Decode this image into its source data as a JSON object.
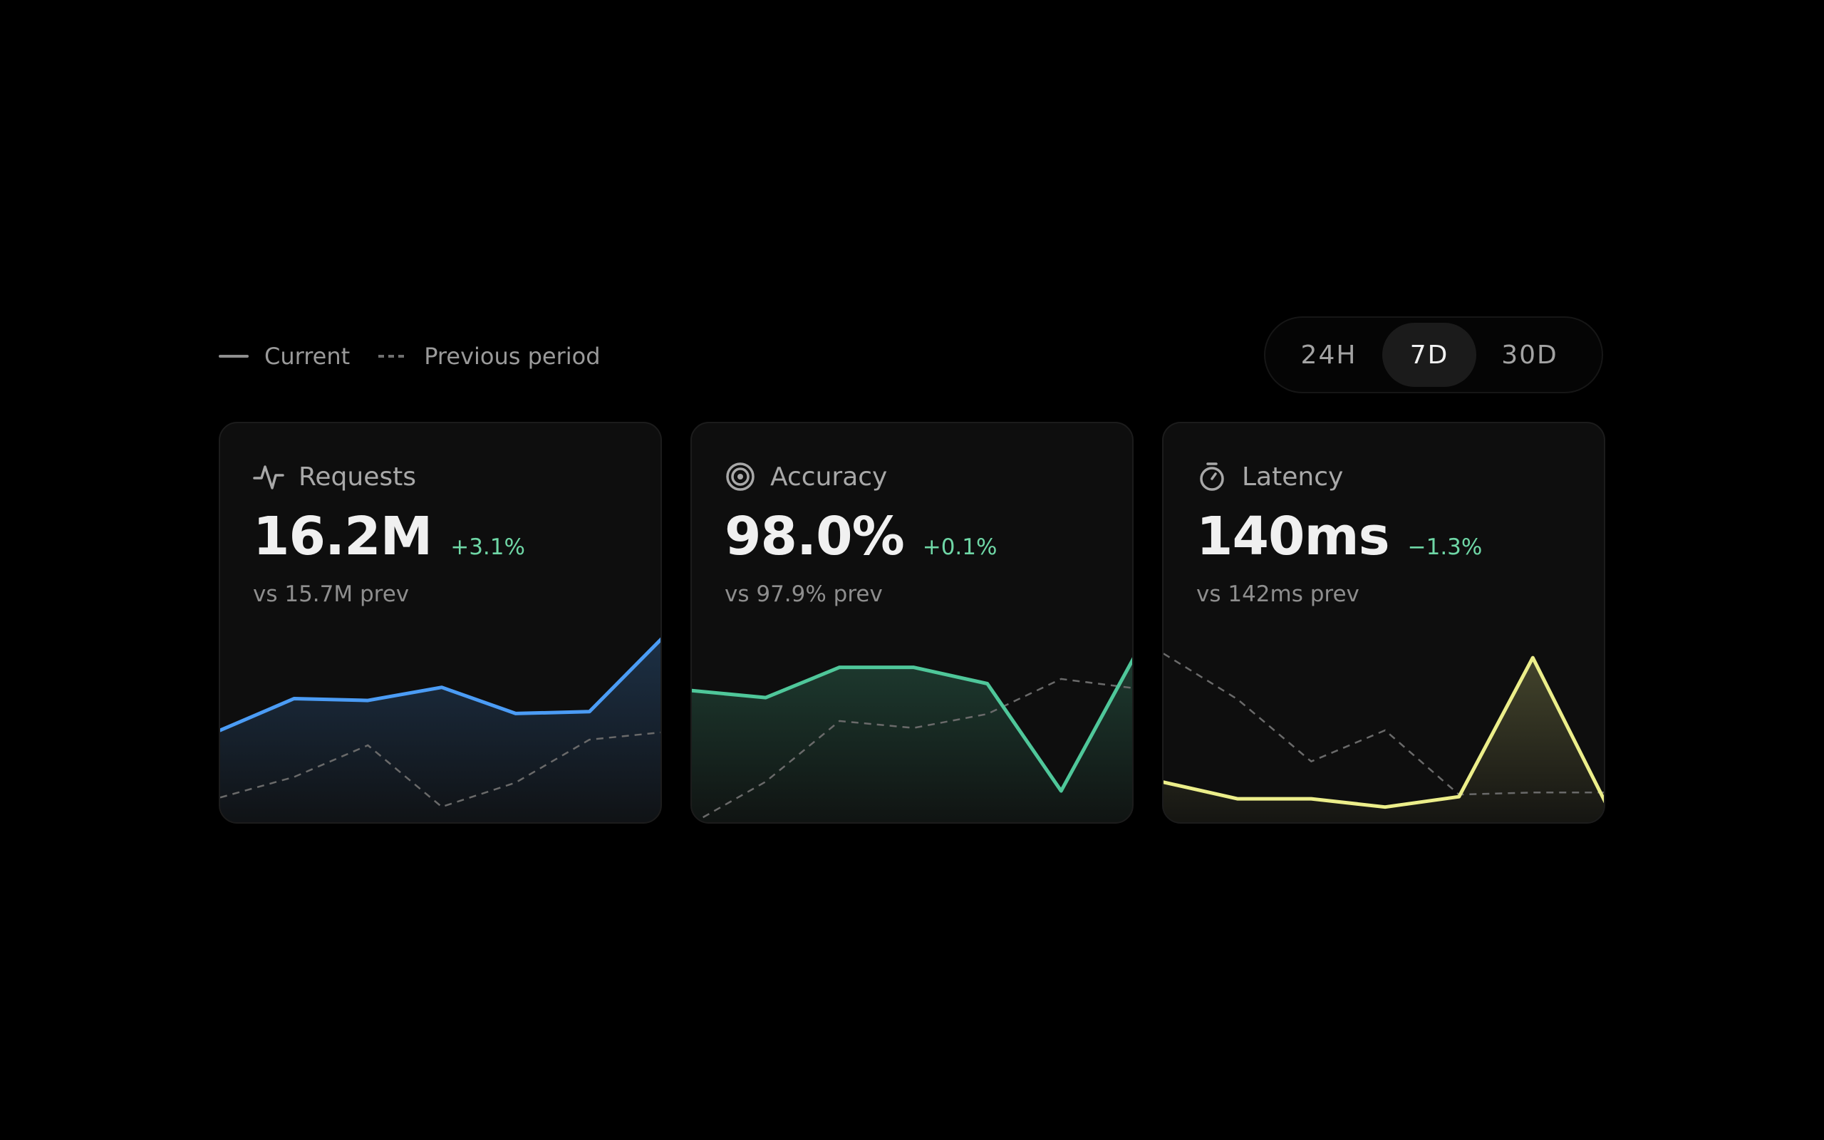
{
  "legend": {
    "current_label": "Current",
    "previous_label": "Previous period"
  },
  "range": {
    "options": [
      "24H",
      "7D",
      "30D"
    ],
    "selected": "7D"
  },
  "cards": [
    {
      "title": "Requests",
      "icon": "activity-pulse-icon",
      "value": "16.2M",
      "delta": "+3.1%",
      "previous": "vs 15.7M prev",
      "color": "#4b9cf5",
      "chart_data": {
        "type": "line",
        "series": [
          {
            "name": "Current",
            "values": [
              20,
              37,
              36,
              43,
              29,
              30,
              70
            ]
          },
          {
            "name": "Previous period",
            "values": [
              -16,
              -5,
              12,
              -21,
              -8,
              15,
              19
            ]
          }
        ],
        "ylim": [
          -30,
          70
        ]
      }
    },
    {
      "title": "Accuracy",
      "icon": "target-icon",
      "value": "98.0%",
      "delta": "+0.1%",
      "previous": "vs 97.9% prev",
      "color": "#4fc79a",
      "chart_data": {
        "type": "line",
        "series": [
          {
            "name": "Current",
            "values": [
              57,
              54,
              67,
              67,
              60,
              14,
              72
            ]
          },
          {
            "name": "Previous period",
            "values": [
              0,
              18,
              44,
              41,
              47,
              62,
              58
            ]
          }
        ],
        "ylim": [
          0,
          80
        ]
      }
    },
    {
      "title": "Latency",
      "icon": "stopwatch-icon",
      "value": "140ms",
      "delta": "−1.3%",
      "previous": "vs 142ms prev",
      "color": "#ecee8a",
      "chart_data": {
        "type": "line",
        "series": [
          {
            "name": "Current",
            "values": [
              20,
              12,
              12,
              8,
              13,
              80,
              9
            ]
          },
          {
            "name": "Previous period",
            "values": [
              82,
              60,
              30,
              45,
              14,
              15,
              15
            ]
          }
        ],
        "ylim": [
          0,
          90
        ]
      }
    }
  ]
}
